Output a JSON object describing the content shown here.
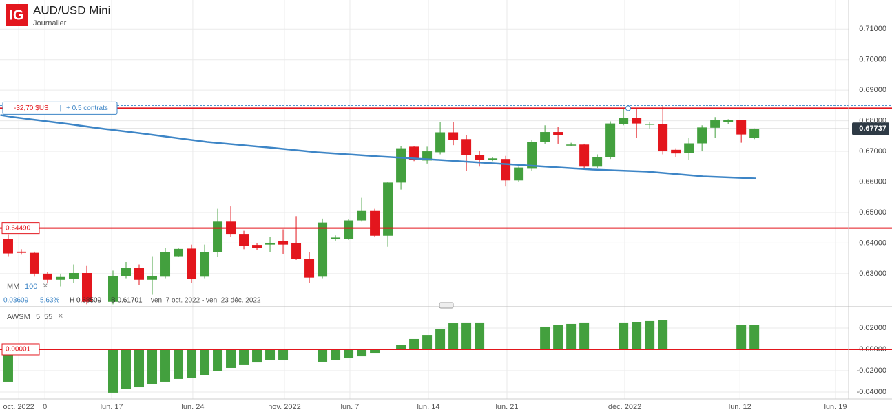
{
  "header": {
    "logo": "IG",
    "title": "AUD/USD Mini",
    "subtitle": "Journalier"
  },
  "chart_data": [
    {
      "type": "candlestick",
      "x": [
        0,
        1,
        2,
        3,
        4,
        5,
        6,
        8,
        9,
        10,
        11,
        12,
        13,
        14,
        15,
        16,
        17,
        18,
        19,
        20,
        21,
        22,
        23,
        24,
        25,
        26,
        27,
        28,
        29,
        30,
        31,
        32,
        33,
        34,
        35,
        36,
        37,
        38,
        39,
        40,
        41,
        42,
        43,
        44,
        45,
        46,
        47,
        48,
        49,
        50,
        51,
        52,
        53,
        54,
        55,
        56,
        57
      ],
      "open": [
        0.6413,
        0.6372,
        0.6368,
        0.63,
        0.628,
        0.6284,
        0.6302,
        0.6208,
        0.6293,
        0.6318,
        0.628,
        0.629,
        0.6357,
        0.6382,
        0.629,
        0.637,
        0.647,
        0.643,
        0.6394,
        0.6395,
        0.6407,
        0.64,
        0.6348,
        0.629,
        0.6414,
        0.6413,
        0.6474,
        0.6505,
        0.6424,
        0.6598,
        0.6715,
        0.667,
        0.6697,
        0.6762,
        0.674,
        0.6688,
        0.6673,
        0.6675,
        0.6605,
        0.6643,
        0.673,
        0.6763,
        0.672,
        0.6722,
        0.665,
        0.6681,
        0.6789,
        0.6809,
        0.6788,
        0.679,
        0.6705,
        0.6695,
        0.6726,
        0.6777,
        0.6795,
        0.6802,
        0.6745
      ],
      "high": [
        0.6429,
        0.638,
        0.6372,
        0.6305,
        0.63,
        0.633,
        0.6325,
        0.631,
        0.6338,
        0.633,
        0.6357,
        0.6385,
        0.6385,
        0.6395,
        0.6395,
        0.6512,
        0.652,
        0.644,
        0.64,
        0.642,
        0.6445,
        0.6488,
        0.637,
        0.648,
        0.6425,
        0.6478,
        0.6548,
        0.6512,
        0.66,
        0.6718,
        0.6718,
        0.6715,
        0.6795,
        0.6795,
        0.6752,
        0.67,
        0.668,
        0.6685,
        0.665,
        0.6738,
        0.6785,
        0.678,
        0.6728,
        0.6725,
        0.669,
        0.6798,
        0.6838,
        0.6838,
        0.6797,
        0.685,
        0.671,
        0.6745,
        0.6785,
        0.6812,
        0.6805,
        0.6802,
        0.6775
      ],
      "low": [
        0.6357,
        0.6362,
        0.629,
        0.627,
        0.6258,
        0.627,
        0.62,
        0.62,
        0.6285,
        0.6262,
        0.6231,
        0.6285,
        0.6355,
        0.627,
        0.6285,
        0.6355,
        0.642,
        0.638,
        0.6378,
        0.637,
        0.6365,
        0.6345,
        0.627,
        0.6285,
        0.6408,
        0.641,
        0.647,
        0.642,
        0.6388,
        0.6575,
        0.6668,
        0.666,
        0.669,
        0.672,
        0.6635,
        0.665,
        0.6668,
        0.6585,
        0.66,
        0.6635,
        0.6725,
        0.6725,
        0.6718,
        0.6645,
        0.6645,
        0.6675,
        0.6785,
        0.6745,
        0.6775,
        0.669,
        0.668,
        0.6672,
        0.67,
        0.6745,
        0.679,
        0.6728,
        0.674
      ],
      "close": [
        0.6366,
        0.6368,
        0.63,
        0.628,
        0.6289,
        0.6302,
        0.6208,
        0.6293,
        0.6318,
        0.628,
        0.6291,
        0.6371,
        0.6381,
        0.6283,
        0.637,
        0.647,
        0.643,
        0.639,
        0.6383,
        0.64,
        0.6395,
        0.6348,
        0.6287,
        0.6467,
        0.6418,
        0.6474,
        0.6505,
        0.6424,
        0.6598,
        0.671,
        0.6672,
        0.67,
        0.6762,
        0.6738,
        0.6688,
        0.6672,
        0.6677,
        0.6605,
        0.6647,
        0.673,
        0.6763,
        0.6754,
        0.6722,
        0.665,
        0.6681,
        0.6791,
        0.6809,
        0.6791,
        0.679,
        0.67,
        0.6693,
        0.6726,
        0.6778,
        0.6802,
        0.6802,
        0.6755,
        0.6774
      ],
      "up_color": "#43a03e",
      "down_color": "#e3161d",
      "xlim": [
        -0.63,
        64.2
      ],
      "xticks": [
        {
          "value": 0.8,
          "label": "oct. 2022"
        },
        {
          "value": 2.8,
          "label": "0"
        },
        {
          "value": 7.9,
          "label": "lun. 17"
        },
        {
          "value": 14.1,
          "label": "lun. 24"
        },
        {
          "value": 21.1,
          "label": "nov. 2022"
        },
        {
          "value": 26.1,
          "label": "lun. 7"
        },
        {
          "value": 32.1,
          "label": "lun. 14"
        },
        {
          "value": 38.1,
          "label": "lun. 21"
        },
        {
          "value": 47.1,
          "label": "déc. 2022"
        },
        {
          "value": 55.9,
          "label": "lun. 12"
        },
        {
          "value": 63.2,
          "label": "lun. 19"
        }
      ],
      "ylim": [
        0.6194,
        0.7195
      ],
      "yticks": [
        {
          "value": 0.63,
          "label": "0.63000"
        },
        {
          "value": 0.64,
          "label": "0.64000"
        },
        {
          "value": 0.65,
          "label": "0.65000"
        },
        {
          "value": 0.66,
          "label": "0.66000"
        },
        {
          "value": 0.67,
          "label": "0.67000"
        },
        {
          "value": 0.68,
          "label": "0.68000"
        },
        {
          "value": 0.69,
          "label": "0.69000"
        },
        {
          "value": 0.7,
          "label": "0.70000"
        },
        {
          "value": 0.71,
          "label": "0.71000"
        }
      ],
      "grid": true,
      "moving_average": {
        "label": "MM",
        "period": 100,
        "color": "#3d85c6",
        "x": [
          -0.6,
          0.4,
          4.6,
          7.3,
          9.9,
          15.2,
          20.4,
          23.6,
          28.3,
          32,
          36.2,
          40.4,
          44.6,
          48.8,
          53.1,
          57.1
        ],
        "values": [
          0.68185,
          0.68117,
          0.67892,
          0.67734,
          0.67599,
          0.67306,
          0.67104,
          0.66968,
          0.66833,
          0.66743,
          0.66631,
          0.66518,
          0.66405,
          0.66338,
          0.6618,
          0.66113
        ]
      },
      "support_level": {
        "value": 0.6449,
        "label": "0.64490",
        "color": "#e3161d"
      },
      "resistance_level": {
        "value": 0.6841,
        "color": "#e3161d"
      },
      "position": {
        "value": 0.685,
        "pnl": "-32,70 $US",
        "size": "+ 0.5 contrats"
      },
      "last_price": 0.67737,
      "stats": {
        "change": 0.03609,
        "change_pct": "5.63%",
        "high": "H 0.68509",
        "low": "B 0.61701",
        "range": "ven. 7 oct. 2022 - ven. 23 déc. 2022"
      }
    },
    {
      "type": "bar",
      "title": "AWSM",
      "fast": 5,
      "slow": 55,
      "color": "#43a03e",
      "x": [
        0,
        8,
        9,
        10,
        11,
        12,
        13,
        14,
        15,
        16,
        17,
        18,
        19,
        20,
        21,
        24,
        25,
        26,
        27,
        28,
        30,
        31,
        32,
        33,
        34,
        35,
        36,
        41,
        42,
        43,
        44,
        47,
        48,
        49,
        50,
        56,
        57
      ],
      "values": [
        -0.0303,
        -0.0406,
        -0.0374,
        -0.0355,
        -0.0323,
        -0.0303,
        -0.0277,
        -0.0265,
        -0.0245,
        -0.02,
        -0.0174,
        -0.0148,
        -0.0123,
        -0.0103,
        -0.0097,
        -0.0116,
        -0.0097,
        -0.0084,
        -0.0065,
        -0.0039,
        0.0045,
        0.0097,
        0.0135,
        0.0187,
        0.0245,
        0.0252,
        0.0252,
        0.0213,
        0.0226,
        0.0239,
        0.0252,
        0.0252,
        0.0258,
        0.0265,
        0.0277,
        0.0226,
        0.0226
      ],
      "ylim": [
        -0.04645,
        0.03935
      ],
      "yticks": [
        {
          "value": -0.04,
          "label": "-0.04000"
        },
        {
          "value": -0.02,
          "label": "-0.02000"
        },
        {
          "value": 0,
          "label": "0.00000"
        },
        {
          "value": 0.02,
          "label": "0.02000"
        }
      ],
      "zero_level": {
        "value": 1e-05,
        "color": "#e3161d"
      }
    }
  ]
}
